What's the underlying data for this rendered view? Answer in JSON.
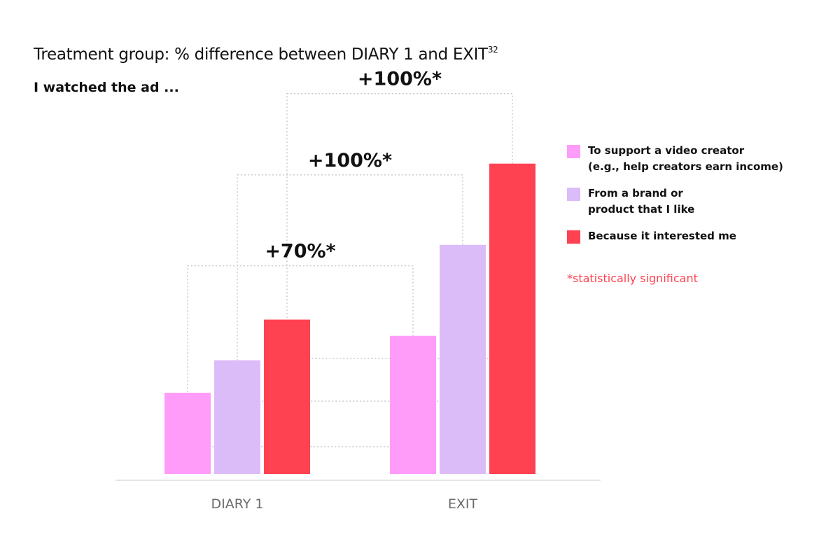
{
  "header": {
    "title": "Treatment group: % difference between DIARY 1 and EXIT",
    "title_footnote": "32",
    "subtitle": "I watched the ad ..."
  },
  "footnote": "*statistically significant",
  "colors": {
    "support_creator": "#ff9cf9",
    "brand_liked": "#dcbcf8",
    "interested": "#ff4252",
    "note": "#ff4350",
    "axis": "#dddddd",
    "bracket": "#c8c8c8"
  },
  "chart_data": {
    "type": "bar",
    "title": "Treatment group: % difference between DIARY 1 and EXIT",
    "subtitle": "I watched the ad ...",
    "categories": [
      "DIARY 1",
      "EXIT"
    ],
    "series": [
      {
        "name": "To support a video creator\n(e.g., help creators earn income)",
        "color": "#ff9cf9",
        "values": [
          1.0,
          1.7
        ]
      },
      {
        "name": "From a brand or\nproduct that I like",
        "color": "#dcbcf8",
        "values": [
          1.4,
          2.82
        ]
      },
      {
        "name": "Because it interested me",
        "color": "#ff4252",
        "values": [
          1.9,
          3.82
        ]
      }
    ],
    "annotations": [
      {
        "series_index": 0,
        "label": "+70%*"
      },
      {
        "series_index": 1,
        "label": "+100%*"
      },
      {
        "series_index": 2,
        "label": "+100%*"
      }
    ],
    "ylim": [
      0,
      4.8
    ],
    "y_axis_shown": false,
    "grid": false,
    "legend_position": "right",
    "xlabel": "",
    "ylabel": ""
  }
}
